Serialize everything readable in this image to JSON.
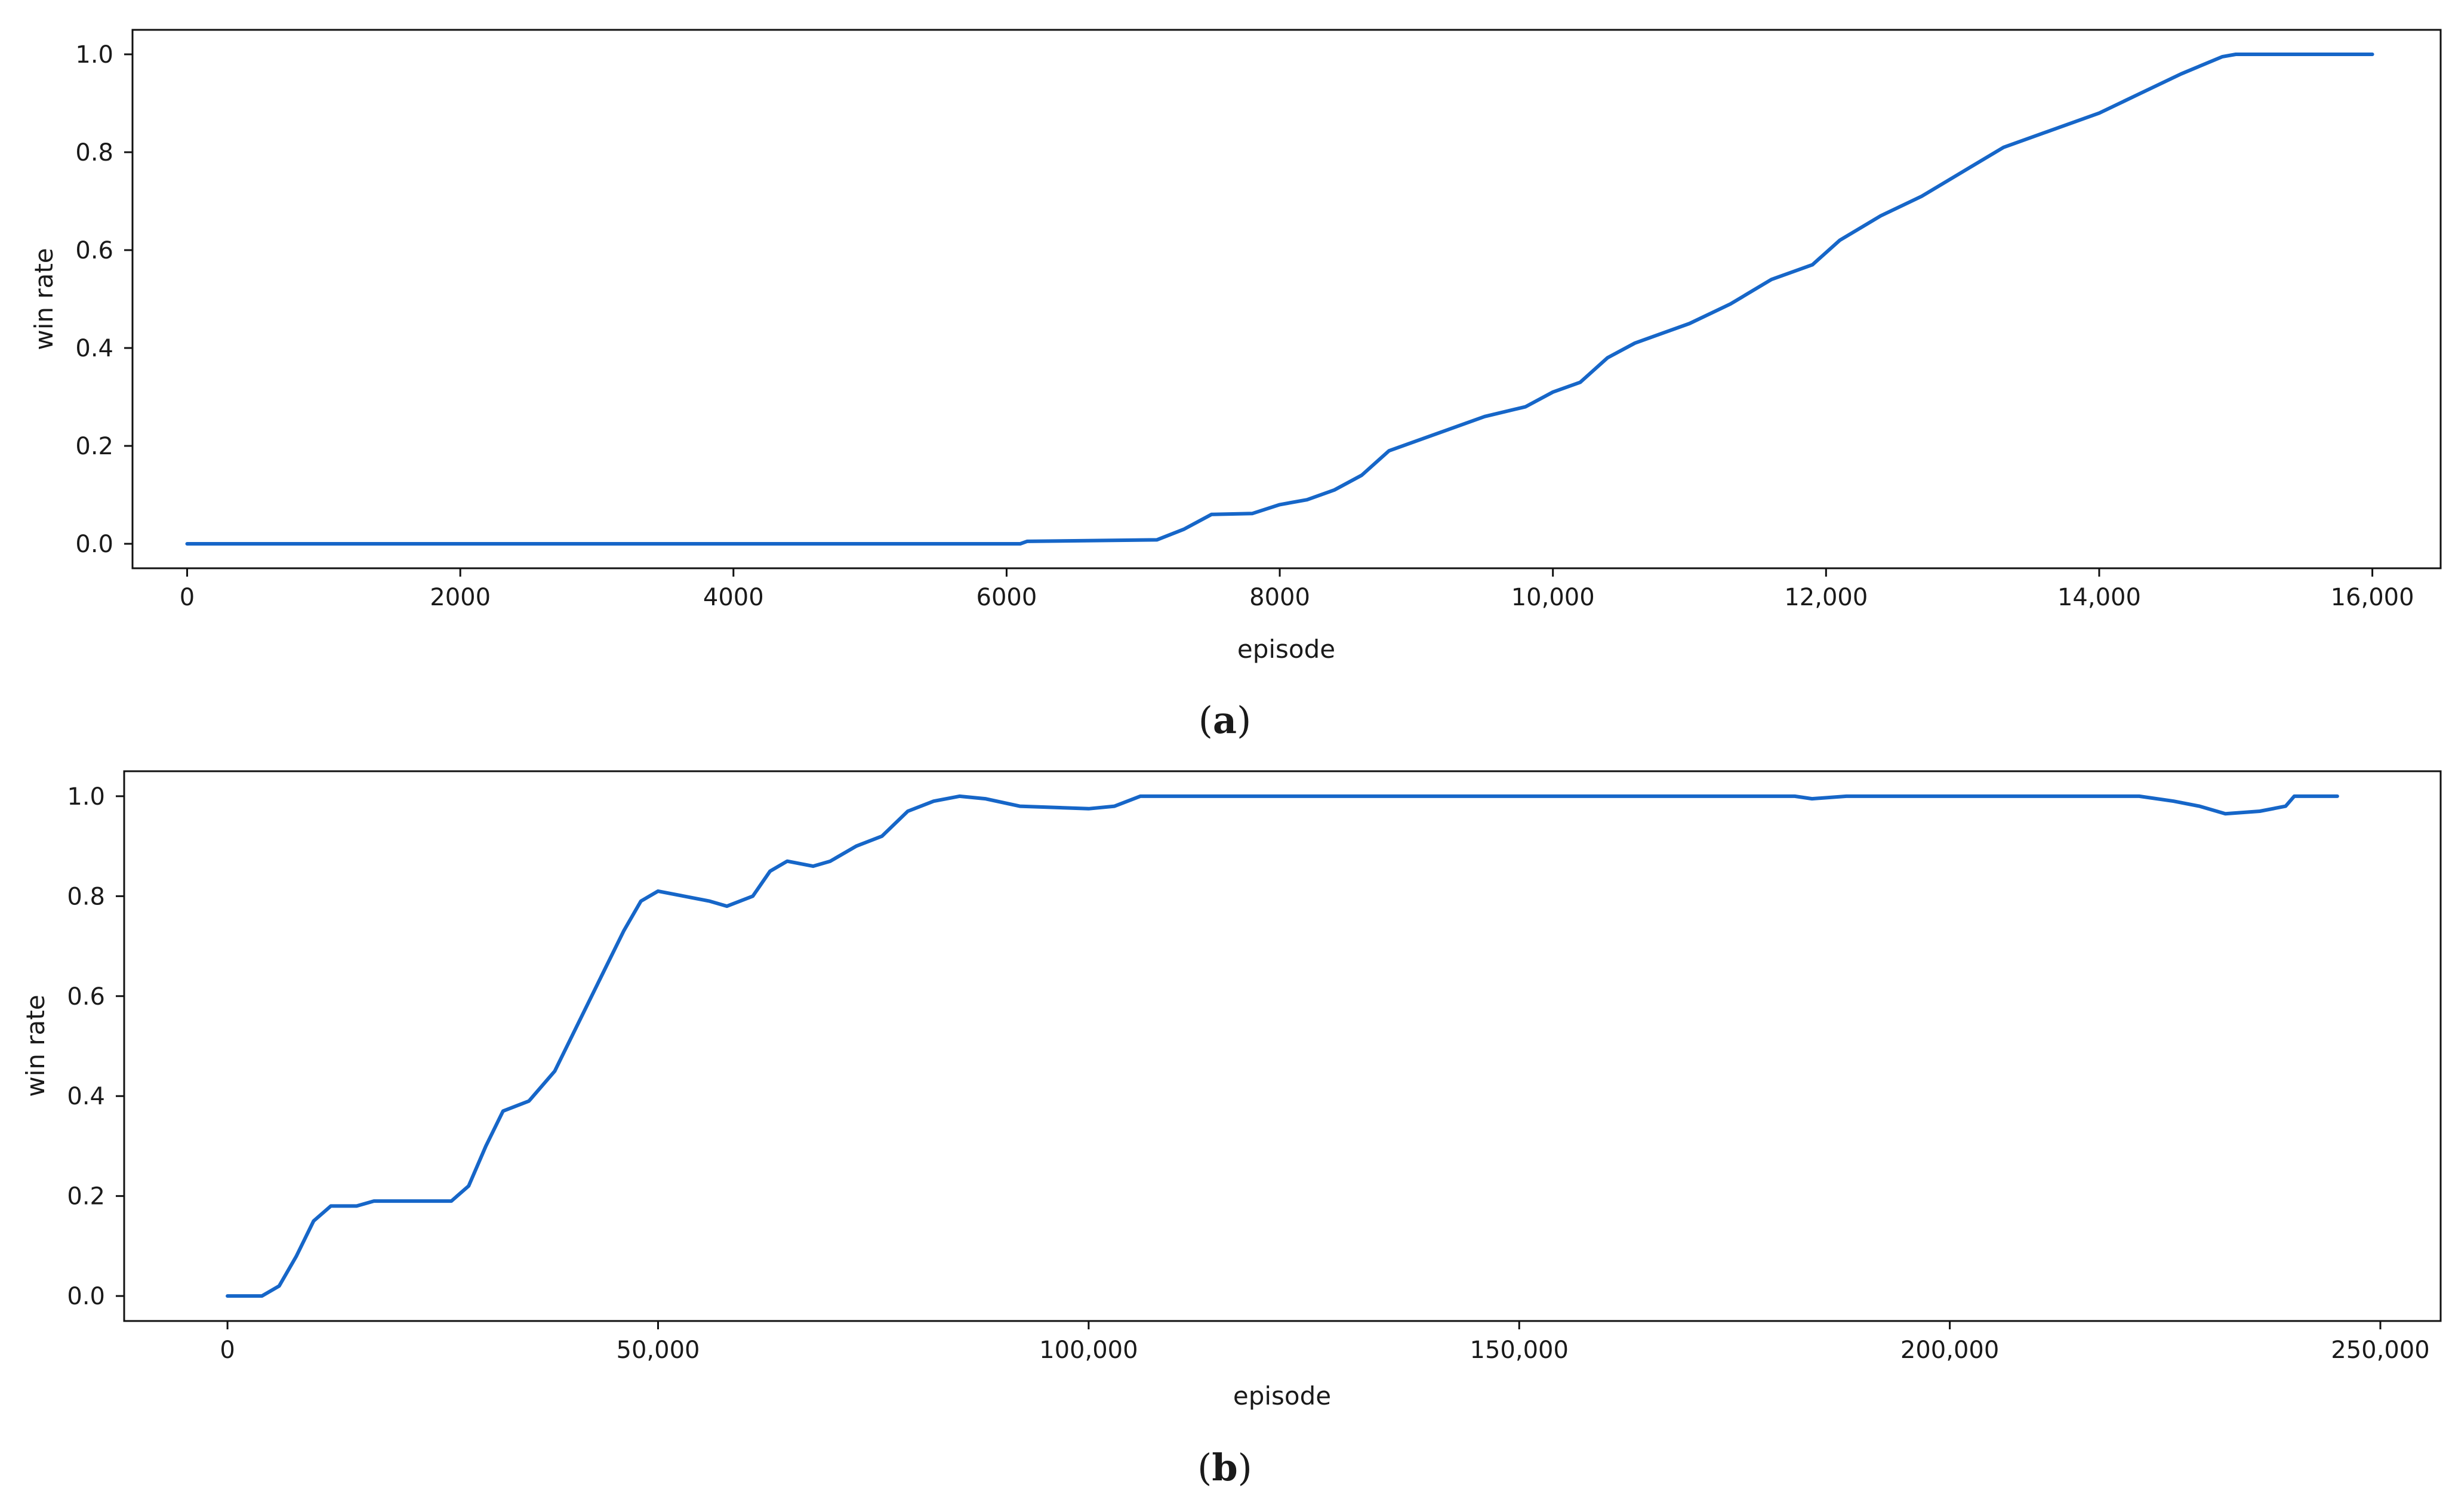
{
  "chart_data": [
    {
      "type": "line",
      "caption": "a",
      "xlabel": "episode",
      "ylabel": "win rate",
      "xlim": [
        -400,
        16500
      ],
      "ylim": [
        -0.05,
        1.05
      ],
      "x_ticks": [
        0,
        2000,
        4000,
        6000,
        8000,
        10000,
        12000,
        14000,
        16000
      ],
      "x_tick_labels": [
        "0",
        "2000",
        "4000",
        "6000",
        "8000",
        "10,000",
        "12,000",
        "14,000",
        "16,000"
      ],
      "y_ticks": [
        0.0,
        0.2,
        0.4,
        0.6,
        0.8,
        1.0
      ],
      "y_tick_labels": [
        "0.0",
        "0.2",
        "0.4",
        "0.6",
        "0.8",
        "1.0"
      ],
      "grid": false,
      "series": [
        {
          "color": "#1666c8",
          "points": [
            [
              0,
              0.0
            ],
            [
              6100,
              0.0
            ],
            [
              6150,
              0.005
            ],
            [
              7100,
              0.008
            ],
            [
              7300,
              0.03
            ],
            [
              7500,
              0.06
            ],
            [
              7800,
              0.062
            ],
            [
              8000,
              0.08
            ],
            [
              8200,
              0.09
            ],
            [
              8400,
              0.11
            ],
            [
              8600,
              0.14
            ],
            [
              8800,
              0.19
            ],
            [
              9200,
              0.23
            ],
            [
              9500,
              0.26
            ],
            [
              9800,
              0.28
            ],
            [
              10000,
              0.31
            ],
            [
              10200,
              0.33
            ],
            [
              10400,
              0.38
            ],
            [
              10600,
              0.41
            ],
            [
              11000,
              0.45
            ],
            [
              11300,
              0.49
            ],
            [
              11600,
              0.54
            ],
            [
              11900,
              0.57
            ],
            [
              12100,
              0.62
            ],
            [
              12400,
              0.67
            ],
            [
              12700,
              0.71
            ],
            [
              13000,
              0.76
            ],
            [
              13300,
              0.81
            ],
            [
              13600,
              0.84
            ],
            [
              14000,
              0.88
            ],
            [
              14300,
              0.92
            ],
            [
              14600,
              0.96
            ],
            [
              14900,
              0.995
            ],
            [
              15000,
              1.0
            ],
            [
              16000,
              1.0
            ]
          ]
        }
      ]
    },
    {
      "type": "line",
      "caption": "b",
      "xlabel": "episode",
      "ylabel": "win rate",
      "xlim": [
        -12000,
        257000
      ],
      "ylim": [
        -0.05,
        1.05
      ],
      "x_ticks": [
        0,
        50000,
        100000,
        150000,
        200000,
        250000
      ],
      "x_tick_labels": [
        "0",
        "50,000",
        "100,000",
        "150,000",
        "200,000",
        "250,000"
      ],
      "y_ticks": [
        0.0,
        0.2,
        0.4,
        0.6,
        0.8,
        1.0
      ],
      "y_tick_labels": [
        "0.0",
        "0.2",
        "0.4",
        "0.6",
        "0.8",
        "1.0"
      ],
      "grid": false,
      "series": [
        {
          "color": "#1666c8",
          "points": [
            [
              0,
              0.0
            ],
            [
              4000,
              0.0
            ],
            [
              6000,
              0.02
            ],
            [
              8000,
              0.08
            ],
            [
              10000,
              0.15
            ],
            [
              12000,
              0.18
            ],
            [
              15000,
              0.18
            ],
            [
              17000,
              0.19
            ],
            [
              26000,
              0.19
            ],
            [
              28000,
              0.22
            ],
            [
              30000,
              0.3
            ],
            [
              32000,
              0.37
            ],
            [
              35000,
              0.39
            ],
            [
              38000,
              0.45
            ],
            [
              40000,
              0.52
            ],
            [
              42000,
              0.59
            ],
            [
              44000,
              0.66
            ],
            [
              46000,
              0.73
            ],
            [
              48000,
              0.79
            ],
            [
              50000,
              0.81
            ],
            [
              53000,
              0.8
            ],
            [
              56000,
              0.79
            ],
            [
              58000,
              0.78
            ],
            [
              61000,
              0.8
            ],
            [
              63000,
              0.85
            ],
            [
              65000,
              0.87
            ],
            [
              68000,
              0.86
            ],
            [
              70000,
              0.87
            ],
            [
              73000,
              0.9
            ],
            [
              76000,
              0.92
            ],
            [
              79000,
              0.97
            ],
            [
              82000,
              0.99
            ],
            [
              85000,
              1.0
            ],
            [
              88000,
              0.995
            ],
            [
              92000,
              0.98
            ],
            [
              100000,
              0.975
            ],
            [
              103000,
              0.98
            ],
            [
              106000,
              1.0
            ],
            [
              110000,
              1.0
            ],
            [
              182000,
              1.0
            ],
            [
              184000,
              0.995
            ],
            [
              188000,
              1.0
            ],
            [
              222000,
              1.0
            ],
            [
              226000,
              0.99
            ],
            [
              229000,
              0.98
            ],
            [
              232000,
              0.965
            ],
            [
              236000,
              0.97
            ],
            [
              239000,
              0.98
            ],
            [
              240000,
              1.0
            ],
            [
              245000,
              1.0
            ]
          ]
        }
      ]
    }
  ]
}
